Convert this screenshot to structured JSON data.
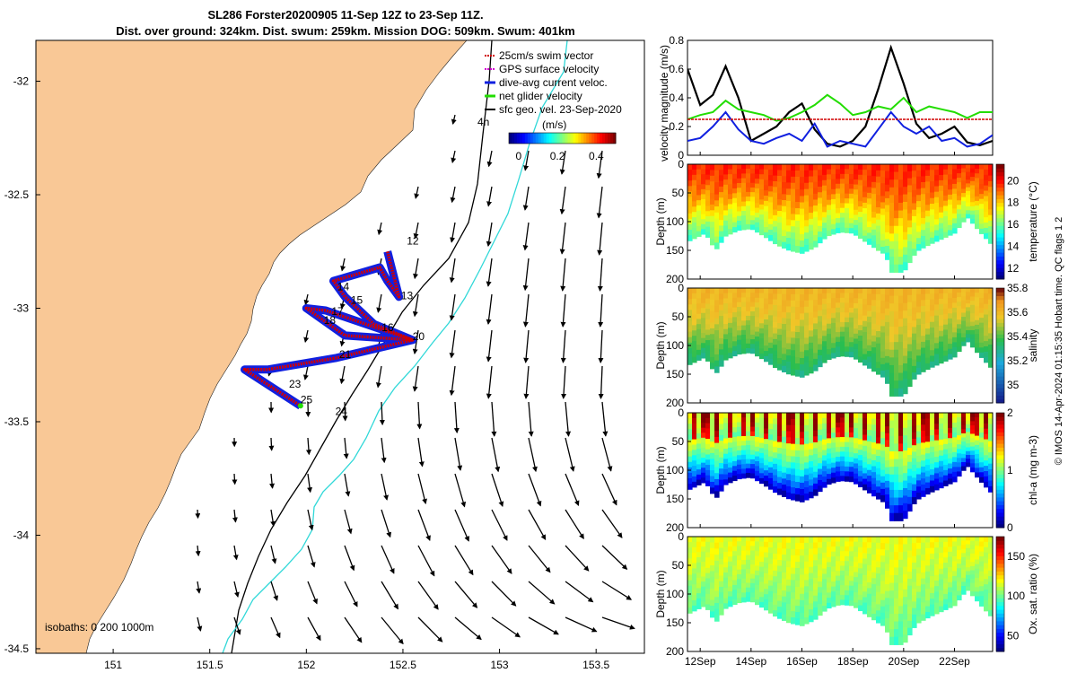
{
  "title": {
    "line1": "SL286 Forster20200905 11-Sep 12Z to 23-Sep 11Z.",
    "line2": "Dist. over ground: 324km. Dist. swum: 259km. Mission DOG: 509km. Swum: 401km"
  },
  "colors": {
    "land": "#f9c896",
    "swim": "#d00000",
    "gps": "#d000d0",
    "diveavg": "#1020e0",
    "netglider": "#22dd00",
    "sfcgeo": "#000000",
    "isobath_200": "#000000",
    "isobath_1000": "#30d8d8"
  },
  "chart_data": [
    {
      "type": "scatter",
      "name": "map",
      "xlim": [
        150.6,
        153.75
      ],
      "ylim": [
        -34.52,
        -31.82
      ],
      "xticks": [
        "151",
        "151.5",
        "152",
        "152.5",
        "153",
        "153.5"
      ],
      "xtick_values": [
        151,
        151.5,
        152,
        152.5,
        153,
        153.5
      ],
      "yticks": [
        "-32",
        "-32.5",
        "-33",
        "-33.5",
        "-34",
        "-34.5"
      ],
      "ytick_values": [
        -32,
        -32.5,
        -33,
        -33.5,
        -34,
        -34.5
      ],
      "legend": {
        "items": [
          "25cm/s swim vector",
          "GPS surface velocity",
          "dive-avg current veloc.",
          "net glider velocity",
          "sfc geo. vel. 23-Sep-2020"
        ],
        "placement": "top-right"
      },
      "colorbar": {
        "label": "(m/s)",
        "ticks": [
          "0",
          "0.2",
          "0.4"
        ],
        "tick_values": [
          0,
          0.2,
          0.4
        ],
        "range": [
          -0.05,
          0.5
        ]
      },
      "isobath_label": "isobaths: 0   200  1000m",
      "annotation_4h": "4h",
      "day_labels": [
        {
          "text": "12",
          "lon": 152.52,
          "lat": -32.72
        },
        {
          "text": "13",
          "lon": 152.49,
          "lat": -32.96
        },
        {
          "text": "14",
          "lon": 152.16,
          "lat": -32.92
        },
        {
          "text": "15",
          "lon": 152.23,
          "lat": -32.98
        },
        {
          "text": "16",
          "lon": 152.39,
          "lat": -33.1
        },
        {
          "text": "17",
          "lon": 152.13,
          "lat": -33.03
        },
        {
          "text": "18",
          "lon": 152.09,
          "lat": -33.07
        },
        {
          "text": "20",
          "lon": 152.55,
          "lat": -33.14
        },
        {
          "text": "21",
          "lon": 152.17,
          "lat": -33.22
        },
        {
          "text": "23",
          "lon": 151.91,
          "lat": -33.35
        },
        {
          "text": "24",
          "lon": 152.15,
          "lat": -33.47
        },
        {
          "text": "25",
          "lon": 151.97,
          "lat": -33.42
        }
      ],
      "glider_track": [
        [
          152.42,
          -32.75
        ],
        [
          152.48,
          -32.95
        ],
        [
          152.42,
          -32.88
        ],
        [
          152.38,
          -32.82
        ],
        [
          152.14,
          -32.88
        ],
        [
          152.2,
          -32.95
        ],
        [
          152.35,
          -33.07
        ],
        [
          152.55,
          -33.14
        ],
        [
          152.1,
          -33.01
        ],
        [
          152.0,
          -33.0
        ],
        [
          152.2,
          -33.12
        ],
        [
          152.55,
          -33.14
        ],
        [
          152.15,
          -33.22
        ],
        [
          151.8,
          -33.27
        ],
        [
          151.68,
          -33.27
        ],
        [
          151.97,
          -33.43
        ]
      ]
    },
    {
      "type": "line",
      "name": "velocity-magnitude",
      "ylabel": "velocity magnitude (m/s)",
      "ylim": [
        0,
        0.8
      ],
      "yticks": [
        "0",
        "0.2",
        "0.4",
        "0.6",
        "0.8"
      ],
      "ytick_values": [
        0,
        0.2,
        0.4,
        0.6,
        0.8
      ],
      "xlim": [
        11.5,
        23.5
      ],
      "x": [
        11.5,
        12,
        12.5,
        13,
        13.5,
        14,
        14.5,
        15,
        15.5,
        16,
        16.5,
        17,
        17.5,
        18,
        18.5,
        19,
        19.5,
        20,
        20.5,
        21,
        21.5,
        22,
        22.5,
        23,
        23.5
      ],
      "series": [
        {
          "color": "#000000",
          "values": [
            0.6,
            0.35,
            0.42,
            0.62,
            0.4,
            0.1,
            0.15,
            0.2,
            0.3,
            0.36,
            0.18,
            0.08,
            0.06,
            0.1,
            0.2,
            0.46,
            0.75,
            0.5,
            0.22,
            0.12,
            0.15,
            0.2,
            0.09,
            0.07,
            0.1
          ]
        },
        {
          "color": "#22dd00",
          "values": [
            0.25,
            0.28,
            0.3,
            0.38,
            0.32,
            0.3,
            0.28,
            0.24,
            0.26,
            0.3,
            0.35,
            0.42,
            0.36,
            0.28,
            0.3,
            0.34,
            0.32,
            0.4,
            0.3,
            0.34,
            0.32,
            0.3,
            0.26,
            0.3,
            0.3
          ]
        },
        {
          "color": "#1020e0",
          "values": [
            0.1,
            0.12,
            0.2,
            0.3,
            0.18,
            0.1,
            0.08,
            0.12,
            0.15,
            0.1,
            0.22,
            0.06,
            0.1,
            0.08,
            0.06,
            0.18,
            0.3,
            0.2,
            0.15,
            0.2,
            0.1,
            0.12,
            0.06,
            0.08,
            0.14
          ]
        },
        {
          "color": "#d00000",
          "values": [
            0.25,
            0.25,
            0.25,
            0.25,
            0.25,
            0.25,
            0.25,
            0.25,
            0.25,
            0.25,
            0.25,
            0.25,
            0.25,
            0.25,
            0.25,
            0.25,
            0.25,
            0.25,
            0.25,
            0.25,
            0.25,
            0.25,
            0.25,
            0.25,
            0.25
          ]
        }
      ]
    },
    {
      "type": "heatmap",
      "name": "temperature",
      "ylabel": "Depth (m)",
      "cbar_label": "temperature (°C)",
      "yticks": [
        "0",
        "50",
        "100",
        "150",
        "200"
      ],
      "ytick_values": [
        0,
        50,
        100,
        150,
        200
      ],
      "cbar_ticks": [
        "12",
        "14",
        "16",
        "18",
        "20"
      ],
      "cbar_tick_values": [
        12,
        14,
        16,
        18,
        20
      ],
      "cbar_range": [
        11,
        21.5
      ],
      "surface_value": 19.8,
      "bottom_value": 15.5
    },
    {
      "type": "heatmap",
      "name": "salinity",
      "ylabel": "Depth (m)",
      "cbar_label": "salinity",
      "yticks": [
        "0",
        "50",
        "100",
        "150",
        "200"
      ],
      "ytick_values": [
        0,
        50,
        100,
        150,
        200
      ],
      "cbar_ticks": [
        "35",
        "35.2",
        "35.4",
        "35.6",
        "35.8"
      ],
      "cbar_tick_values": [
        35,
        35.2,
        35.4,
        35.6,
        35.8
      ],
      "cbar_range": [
        34.85,
        35.8
      ],
      "surface_value": 35.62,
      "bottom_value": 35.3
    },
    {
      "type": "heatmap",
      "name": "chl-a",
      "ylabel": "Depth (m)",
      "cbar_label": "chl-a (mg m-3)",
      "yticks": [
        "0",
        "50",
        "100",
        "150",
        "200"
      ],
      "ytick_values": [
        0,
        50,
        100,
        150,
        200
      ],
      "cbar_ticks": [
        "0",
        "1",
        "2"
      ],
      "cbar_tick_values": [
        0,
        1,
        2
      ],
      "cbar_range": [
        0,
        2
      ],
      "surface_value": 1.5,
      "bottom_value": 0.05
    },
    {
      "type": "heatmap",
      "name": "oxygen",
      "ylabel": "Depth (m)",
      "cbar_label": "Ox. sat. ratio (%)",
      "yticks": [
        "0",
        "50",
        "100",
        "150",
        "200"
      ],
      "ytick_values": [
        0,
        50,
        100,
        150,
        200
      ],
      "cbar_ticks": [
        "50",
        "100",
        "150"
      ],
      "cbar_tick_values": [
        50,
        100,
        150
      ],
      "cbar_range": [
        30,
        175
      ],
      "surface_value": 118,
      "bottom_value": 95
    },
    {
      "type": "line",
      "name": "time-axis",
      "xticks": [
        "12Sep",
        "14Sep",
        "16Sep",
        "18Sep",
        "20Sep",
        "22Sep"
      ],
      "xtick_values": [
        12,
        14,
        16,
        18,
        20,
        22
      ],
      "bottom_depth_profile": {
        "x": [
          11.5,
          12.2,
          12.6,
          13.0,
          13.5,
          14.0,
          14.5,
          15.0,
          15.5,
          16.0,
          16.5,
          17.0,
          17.5,
          18.0,
          18.5,
          19.0,
          19.3,
          19.5,
          20.0,
          20.5,
          21.0,
          21.5,
          22.0,
          22.5,
          23.0,
          23.5
        ],
        "depth": [
          135,
          120,
          150,
          125,
          115,
          112,
          125,
          140,
          150,
          155,
          145,
          125,
          118,
          120,
          135,
          150,
          158,
          188,
          188,
          152,
          140,
          130,
          120,
          92,
          118,
          142
        ]
      }
    }
  ],
  "side_note": "© IMOS 14-Apr-2024 01:15:35 Hobart time. QC flags 1  2"
}
